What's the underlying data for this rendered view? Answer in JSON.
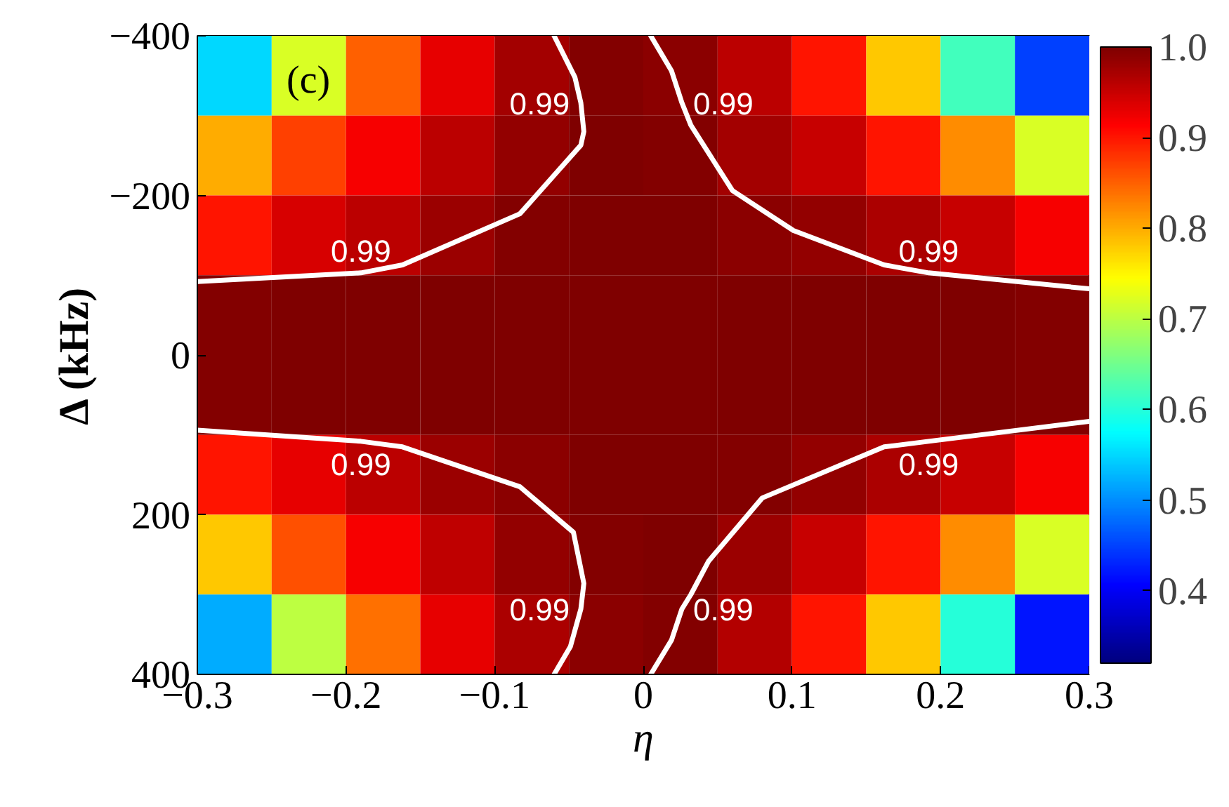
{
  "chart_data": {
    "type": "heatmap",
    "xlabel": "η",
    "ylabel": "Δ (kHz)",
    "x": [
      -0.275,
      -0.225,
      -0.175,
      -0.125,
      -0.075,
      -0.025,
      0.025,
      0.075,
      0.125,
      0.175,
      0.225,
      0.275
    ],
    "y": [
      -350,
      -250,
      -150,
      -50,
      50,
      150,
      250,
      350
    ],
    "cells": [
      [
        0.55,
        0.72,
        0.85,
        0.93,
        0.975,
        0.995,
        0.99,
        0.96,
        0.9,
        0.78,
        0.62,
        0.45
      ],
      [
        0.8,
        0.87,
        0.92,
        0.96,
        0.985,
        1.0,
        0.995,
        0.975,
        0.95,
        0.9,
        0.82,
        0.72
      ],
      [
        0.9,
        0.94,
        0.96,
        0.98,
        0.995,
        1.0,
        1.0,
        0.99,
        0.985,
        0.97,
        0.95,
        0.92
      ],
      [
        0.995,
        1.0,
        1.0,
        1.0,
        1.0,
        1.0,
        1.0,
        1.0,
        1.0,
        1.0,
        1.0,
        0.995
      ],
      [
        0.995,
        1.0,
        1.0,
        1.0,
        1.0,
        1.0,
        1.0,
        1.0,
        1.0,
        1.0,
        1.0,
        0.995
      ],
      [
        0.9,
        0.93,
        0.96,
        0.98,
        0.99,
        1.0,
        1.0,
        0.995,
        0.985,
        0.97,
        0.95,
        0.92
      ],
      [
        0.78,
        0.86,
        0.92,
        0.955,
        0.985,
        0.995,
        1.0,
        0.98,
        0.95,
        0.9,
        0.82,
        0.72
      ],
      [
        0.52,
        0.7,
        0.84,
        0.93,
        0.97,
        0.99,
        0.995,
        0.965,
        0.9,
        0.78,
        0.6,
        0.42
      ]
    ],
    "clim": [
      0.32,
      1.0
    ],
    "cticks": [
      0.4,
      0.5,
      0.6,
      0.7,
      0.8,
      0.9,
      {
        "value": 1.0,
        "label": "1.0"
      }
    ],
    "xlim": [
      -0.3,
      0.3
    ],
    "xticks": [
      {
        "value": -0.3,
        "label": "−0.3"
      },
      {
        "value": -0.2,
        "label": "−0.2"
      },
      {
        "value": -0.1,
        "label": "−0.1"
      },
      0,
      0.1,
      0.2,
      0.3
    ],
    "ylim": [
      400,
      -400
    ],
    "yticks": [
      {
        "value": -400,
        "label": "−400"
      },
      {
        "value": -200,
        "label": "−200"
      },
      0,
      200,
      400
    ],
    "series": [
      {
        "type": "line",
        "name": "0.99",
        "color": "#ffffff",
        "x": [
          -0.3,
          -0.19,
          -0.162,
          -0.083,
          -0.042,
          -0.04,
          -0.042,
          -0.046,
          -0.06
        ],
        "values": [
          -92,
          -103,
          -113,
          -177,
          -263,
          -280,
          -316,
          -348,
          -400
        ]
      },
      {
        "type": "line",
        "name": "0.99",
        "color": "#ffffff",
        "x": [
          0.3,
          0.192,
          0.162,
          0.101,
          0.06,
          0.032,
          0.026,
          0.019,
          0.005
        ],
        "values": [
          -83,
          -103,
          -113,
          -156,
          -206,
          -288,
          -316,
          -356,
          -400
        ]
      },
      {
        "type": "line",
        "name": "0.99",
        "color": "#ffffff",
        "x": [
          -0.3,
          -0.19,
          -0.162,
          -0.083,
          -0.047,
          -0.04,
          -0.042,
          -0.049,
          -0.06
        ],
        "values": [
          94,
          108,
          115,
          165,
          222,
          286,
          318,
          365,
          400
        ]
      },
      {
        "type": "line",
        "name": "0.99",
        "color": "#ffffff",
        "x": [
          0.3,
          0.192,
          0.162,
          0.08,
          0.044,
          0.032,
          0.026,
          0.019,
          0.005
        ],
        "values": [
          83,
          108,
          115,
          179,
          258,
          300,
          318,
          357,
          400
        ]
      }
    ],
    "annotations": [
      "(c)"
    ]
  }
}
